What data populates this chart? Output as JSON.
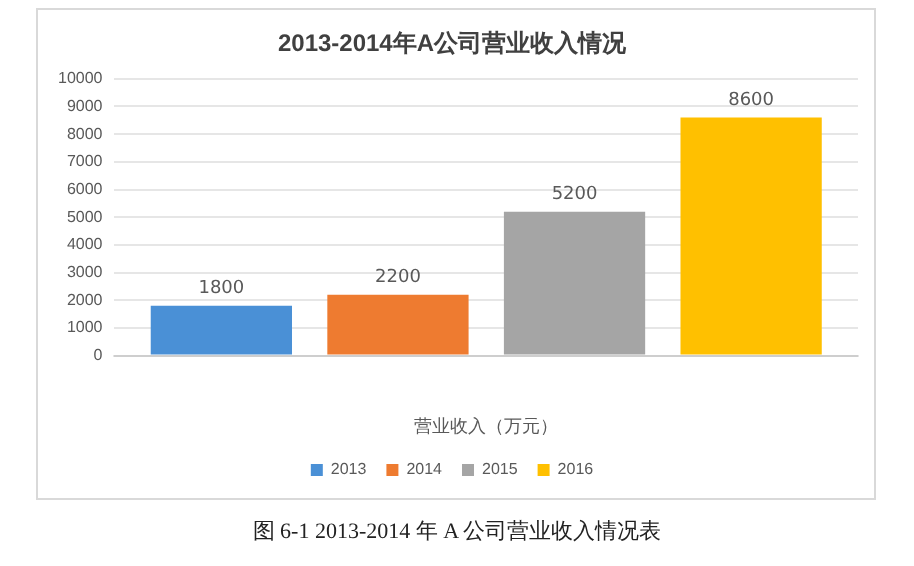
{
  "chart_data": {
    "type": "bar",
    "title": "2013-2014年A公司营业收入情况",
    "xlabel": "营业收入（万元）",
    "categories": [
      null
    ],
    "series": [
      {
        "name": "2013",
        "color": "#4a90d6",
        "values": [
          1800
        ]
      },
      {
        "name": "2014",
        "color": "#ee7b30",
        "values": [
          2200
        ]
      },
      {
        "name": "2015",
        "color": "#a5a5a5",
        "values": [
          5200
        ]
      },
      {
        "name": "2016",
        "color": "#ffc000",
        "values": [
          8600
        ]
      }
    ],
    "ylim": [
      0,
      10000
    ],
    "yticks": [
      0,
      1000,
      2000,
      3000,
      4000,
      5000,
      6000,
      7000,
      8000,
      9000,
      10000
    ],
    "grid": "y",
    "legend": "bottom",
    "data_labels": true,
    "annotations": [
      "图 6-1 2013-2014 年 A 公司营业收入情况表"
    ]
  }
}
